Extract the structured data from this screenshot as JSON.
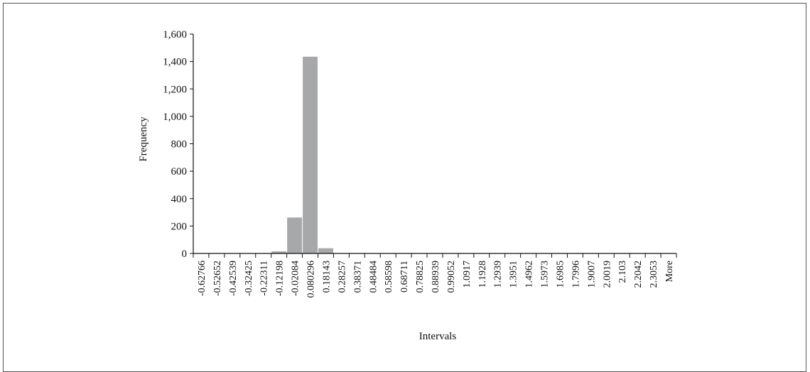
{
  "chart_data": {
    "type": "bar",
    "title": "",
    "xlabel": "Intervals",
    "ylabel": "Frequency",
    "ylim": [
      0,
      1600
    ],
    "yticks": [
      0,
      200,
      400,
      600,
      800,
      1000,
      1200,
      1400,
      1600
    ],
    "ytick_labels": [
      "0",
      "200",
      "400",
      "600",
      "800",
      "1,000",
      "1,200",
      "1,400",
      "1,600"
    ],
    "categories": [
      "-0.62766",
      "-0.52652",
      "-0.42539",
      "-0.32425",
      "-0.22311",
      "-0.12198",
      "-0.02084",
      "0.080296",
      "0.18143",
      "0.28257",
      "0.38371",
      "0.48484",
      "0.58598",
      "0.68711",
      "0.78825",
      "0.88939",
      "0.99052",
      "1.0917",
      "1.1928",
      "1.2939",
      "1.3951",
      "1.4962",
      "1.5973",
      "1.6985",
      "1.7996",
      "1.9007",
      "2.0019",
      "2.103",
      "2.2042",
      "2.3053",
      "More"
    ],
    "values": [
      0,
      0,
      0,
      0,
      0,
      15,
      262,
      1435,
      38,
      0,
      0,
      0,
      0,
      0,
      0,
      0,
      0,
      0,
      0,
      0,
      0,
      0,
      0,
      0,
      0,
      0,
      0,
      0,
      0,
      0,
      0
    ],
    "bar_color": "#a6a8aa",
    "grid": false,
    "legend": "none"
  }
}
